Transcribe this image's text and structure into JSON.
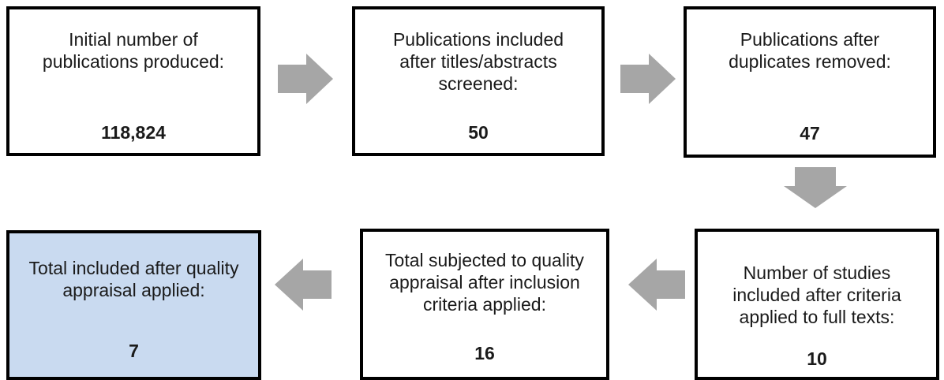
{
  "diagram": {
    "steps": [
      {
        "label": "Initial number of publications produced:",
        "value": "118,824",
        "fill": "#ffffff"
      },
      {
        "label": "Publications included after titles/abstracts screened:",
        "value": "50",
        "fill": "#ffffff"
      },
      {
        "label": "Publications after duplicates removed:",
        "value": "47",
        "fill": "#ffffff"
      },
      {
        "label": "Number of studies included after criteria applied to full texts:",
        "value": "10",
        "fill": "#ffffff"
      },
      {
        "label": "Total subjected to quality appraisal after inclusion criteria applied:",
        "value": "16",
        "fill": "#ffffff"
      },
      {
        "label": "Total included after quality appraisal applied:",
        "value": "7",
        "fill": "#c9daf0"
      }
    ],
    "colors": {
      "border": "#000000",
      "arrow": "#a6a6a6",
      "highlight": "#c9daf0"
    }
  }
}
